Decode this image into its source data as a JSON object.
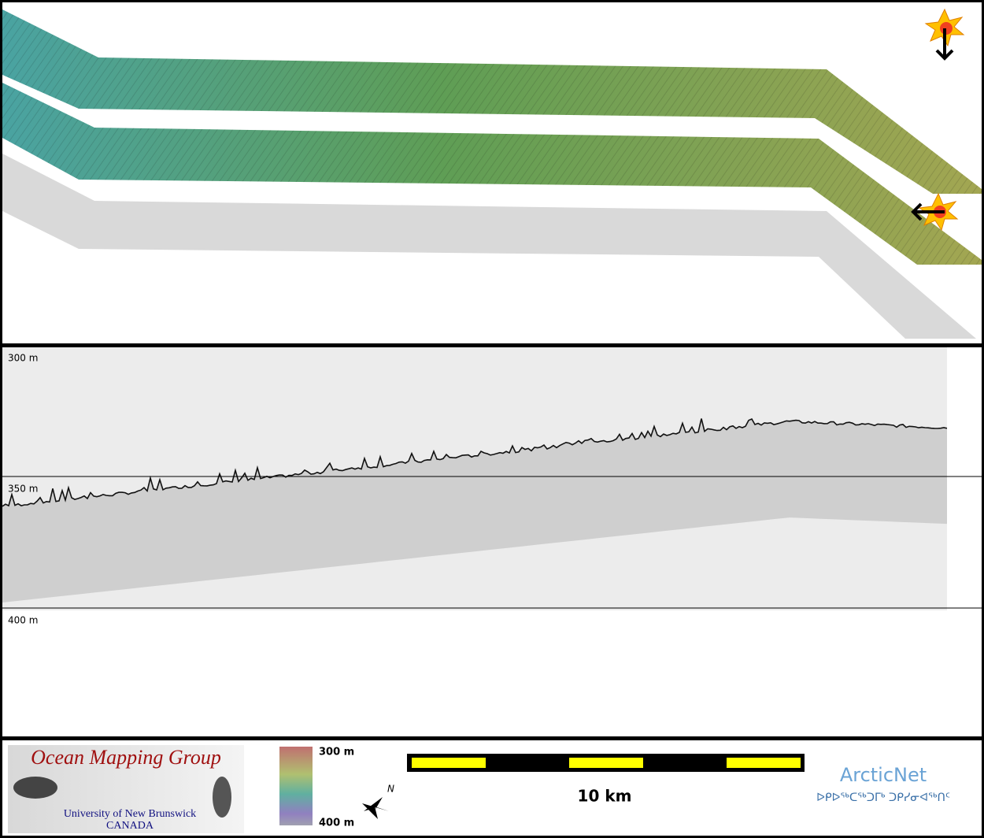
{
  "profile": {
    "depth_labels": [
      "300 m",
      "350 m",
      "400 m"
    ]
  },
  "footer": {
    "logo": {
      "title": "Ocean Mapping Group",
      "university": "University of New Brunswick",
      "country": "CANADA"
    },
    "colorbar": {
      "top": "300 m",
      "bottom": "400 m"
    },
    "compass": "N",
    "scale": "10 km",
    "arcticnet": {
      "name": "ArcticNet",
      "syllabics": "ᐅᑭᐅᖅᑕᖅᑐᒥᒃ ᑐᑭᓯᓂᐊᖅᑎᑦ"
    }
  }
}
